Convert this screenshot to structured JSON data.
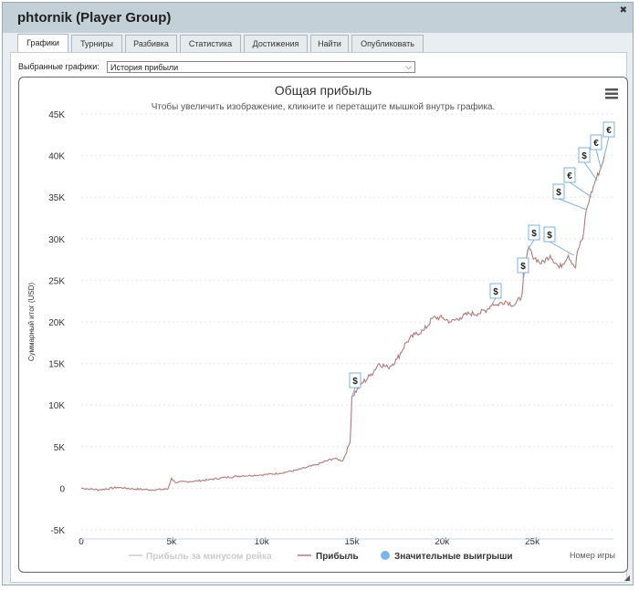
{
  "window": {
    "title": "phtornik (Player Group)"
  },
  "tabs": [
    "Графики",
    "Турниры",
    "Разбивка",
    "Статистика",
    "Достижения",
    "Найти",
    "Опубликовать"
  ],
  "selector": {
    "label": "Выбранные графики:",
    "value": "История прибыли"
  },
  "chart_data": {
    "type": "line",
    "title": "Общая прибыль",
    "subtitle": "Чтобы увеличить изображение, кликните и перетащите мышкой внутрь графика.",
    "ylabel": "Суммарный итог (USD)",
    "xlabel": "Номер игры",
    "xlim": [
      0,
      29500
    ],
    "ylim": [
      -5000,
      45000
    ],
    "x_ticks": [
      0,
      5000,
      10000,
      15000,
      20000,
      25000
    ],
    "x_tick_labels": [
      "0",
      "5k",
      "10k",
      "15k",
      "20k",
      "25k"
    ],
    "y_ticks": [
      -5000,
      0,
      5000,
      10000,
      15000,
      20000,
      25000,
      30000,
      35000,
      40000,
      45000
    ],
    "y_tick_labels": [
      "-5K",
      "0",
      "5K",
      "10K",
      "15K",
      "20K",
      "25K",
      "30K",
      "35K",
      "40K",
      "45K"
    ],
    "grid": true,
    "legend_position": "bottom",
    "series": [
      {
        "name": "Прибыль за минусом рейка",
        "color": "#cccccc",
        "hidden": true,
        "x": [],
        "y": []
      },
      {
        "name": "Прибыль",
        "color": "#b07a7a",
        "x": [
          0,
          500,
          1000,
          2000,
          3000,
          4000,
          4800,
          5000,
          5200,
          6000,
          7000,
          8000,
          9000,
          10000,
          11000,
          12000,
          13000,
          14000,
          14500,
          14900,
          15000,
          15500,
          16000,
          16500,
          17000,
          17500,
          18000,
          18500,
          19000,
          19500,
          20000,
          20500,
          21000,
          21500,
          22000,
          22500,
          22800,
          23000,
          23500,
          24000,
          24400,
          24500,
          24800,
          25000,
          25500,
          26000,
          26500,
          27000,
          27400,
          27500,
          27800,
          28000,
          28200,
          28500,
          28800,
          29000
        ],
        "y": [
          0,
          -100,
          -200,
          100,
          -100,
          -200,
          -100,
          1200,
          700,
          800,
          1000,
          1300,
          1500,
          1600,
          1800,
          2200,
          2800,
          3600,
          3300,
          5500,
          11000,
          12500,
          13500,
          15000,
          14500,
          15500,
          17500,
          18500,
          19000,
          20500,
          20500,
          20000,
          20500,
          21000,
          21000,
          21500,
          22200,
          22000,
          22500,
          22000,
          23000,
          25000,
          29000,
          28000,
          27000,
          28000,
          26500,
          28000,
          26500,
          28500,
          30000,
          33500,
          35000,
          37000,
          38500,
          40000
        ]
      }
    ],
    "big_wins": {
      "name": "Значительные выигрыши",
      "color": "#7cb5ec",
      "points": [
        {
          "x": 15000,
          "y": 11000,
          "symbol": "$"
        },
        {
          "x": 22800,
          "y": 22200,
          "symbol": "$"
        },
        {
          "x": 24500,
          "y": 25000,
          "symbol": "$"
        },
        {
          "x": 24700,
          "y": 28500,
          "symbol": "$"
        },
        {
          "x": 27300,
          "y": 28000,
          "symbol": "$"
        },
        {
          "x": 28000,
          "y": 33500,
          "symbol": "$"
        },
        {
          "x": 28300,
          "y": 35000,
          "symbol": "€"
        },
        {
          "x": 28600,
          "y": 37000,
          "symbol": "$"
        },
        {
          "x": 28800,
          "y": 38500,
          "symbol": "€"
        },
        {
          "x": 29000,
          "y": 40000,
          "symbol": "€"
        }
      ]
    }
  },
  "colors": {
    "titlebar": "#c4d0d7",
    "big_win_line": "#7fb0d6"
  }
}
